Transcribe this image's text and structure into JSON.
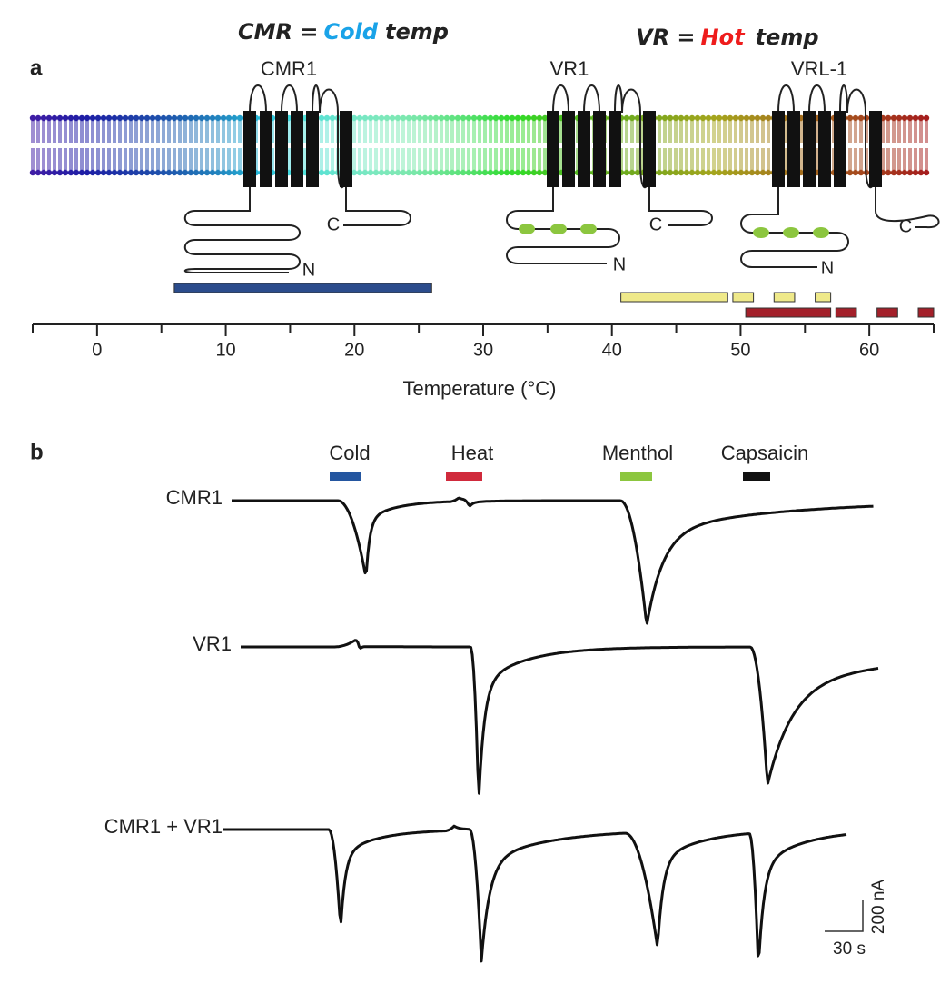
{
  "annotations": {
    "cmr": {
      "lead": "CMR =",
      "word": "Cold",
      "tail": "temp"
    },
    "vr": {
      "lead": "VR =",
      "word": "Hot",
      "tail": "temp"
    }
  },
  "panel_a": {
    "label": "a",
    "channels": [
      "CMR1",
      "VR1",
      "VRL-1"
    ],
    "terminals": {
      "c": "C",
      "n": "N"
    },
    "temperature_axis": {
      "label": "Temperature (°C)",
      "xlim": [
        -5,
        65
      ],
      "xticks": [
        0,
        10,
        20,
        30,
        40,
        50,
        60
      ],
      "minor_xticks": [
        -5,
        5,
        15,
        25,
        35,
        45,
        55,
        65
      ]
    },
    "activation_ranges": [
      {
        "start": 6,
        "end": 26,
        "color": "#2b4c8c",
        "style": "solid"
      },
      {
        "start": 40.7,
        "end": 49,
        "color": "#efe98a",
        "style": "solid"
      },
      {
        "start": 49,
        "end": 57,
        "color": "#efe98a",
        "style": "dashed"
      },
      {
        "start": 50.4,
        "end": 57,
        "color": "#a3202a",
        "style": "solid"
      },
      {
        "start": 57,
        "end": 65,
        "color": "#a3202a",
        "style": "dashed"
      }
    ]
  },
  "panel_b": {
    "label": "b",
    "stimuli": [
      {
        "name": "Cold",
        "color": "#2456a0"
      },
      {
        "name": "Heat",
        "color": "#d02a3c"
      },
      {
        "name": "Menthol",
        "color": "#8cc63f"
      },
      {
        "name": "Capsaicin",
        "color": "#111111"
      }
    ],
    "traces": [
      "CMR1",
      "VR1",
      "CMR1 + VR1"
    ],
    "scale_bar": {
      "current": "200 nA",
      "time": "30 s"
    }
  }
}
